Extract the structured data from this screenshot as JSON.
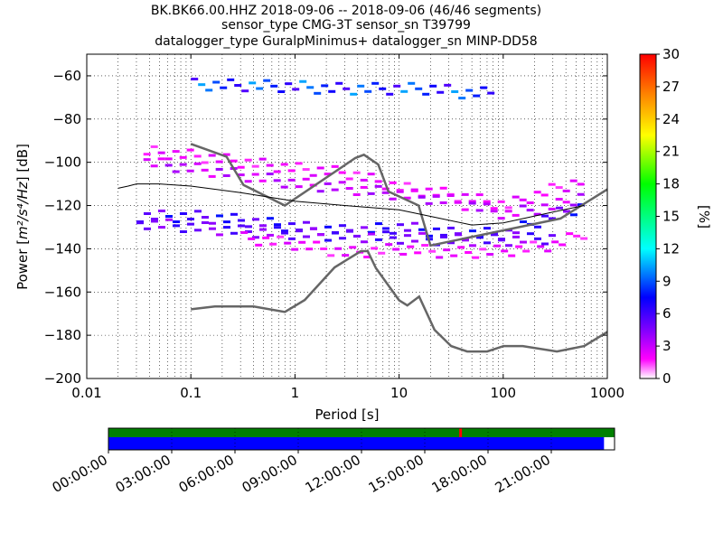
{
  "title_lines": [
    "BK.BK66.00.HHZ   2018-09-06 -- 2018-09-06  (46/46 segments)",
    "sensor_type CMG-3T sensor_sn T39799",
    "datalogger_type GuralpMinimus+ datalogger_sn MINP-DD58"
  ],
  "chart_data": [
    {
      "type": "heatmap",
      "xlabel": "Period [s]",
      "ylabel_prefix": "Power [",
      "ylabel_math": "m²/s⁴/Hz",
      "ylabel_suffix": "] [dB]",
      "x_scale": "log",
      "xlim": [
        0.01,
        1000
      ],
      "ylim": [
        -200,
        -50
      ],
      "x_ticks": [
        0.01,
        0.1,
        1,
        10,
        100,
        1000
      ],
      "x_tick_labels": [
        "0.01",
        "0.1",
        "1",
        "10",
        "100",
        "1000"
      ],
      "y_ticks": [
        -60,
        -80,
        -100,
        -120,
        -140,
        -160,
        -180,
        -200
      ],
      "y_tick_labels": [
        "−60",
        "−80",
        "−100",
        "−120",
        "−140",
        "−160",
        "−180",
        "−200"
      ],
      "grid": true,
      "colorbar": {
        "label": "[%]",
        "range": [
          0,
          30
        ],
        "ticks": [
          0,
          3,
          6,
          9,
          12,
          15,
          18,
          21,
          24,
          27,
          30
        ],
        "colors": [
          "#ffffff",
          "#ff00ff",
          "#8000ff",
          "#0000ff",
          "#00ffff",
          "#00ff00",
          "#ffff00",
          "#ff8000",
          "#ff0000"
        ]
      },
      "noise_models": [
        {
          "name": "NHNM",
          "period": [
            0.1,
            0.22,
            0.32,
            0.8,
            3.8,
            4.6,
            6.3,
            7.9,
            15.4,
            20,
            354.8,
            1000
          ],
          "power": [
            -91.5,
            -97.4,
            -110.5,
            -120,
            -98,
            -96.5,
            -101,
            -113.5,
            -120,
            -138.5,
            -126,
            -112.5
          ]
        },
        {
          "name": "NLNM",
          "period": [
            0.1,
            0.17,
            0.4,
            0.8,
            1.24,
            2.4,
            4.3,
            5.0,
            6.0,
            10.0,
            12.0,
            15.6,
            21.9,
            31.6,
            45,
            70,
            101,
            154,
            328,
            600,
            1000
          ],
          "power": [
            -168,
            -166.7,
            -166.7,
            -169.2,
            -163.7,
            -148.6,
            -141.1,
            -141.1,
            -149,
            -163.8,
            -166.2,
            -162.1,
            -177.5,
            -185,
            -187.5,
            -187.5,
            -185,
            -185,
            -187.5,
            -185,
            -178.5
          ]
        }
      ],
      "mean": {
        "period": [
          0.02,
          0.025,
          0.03,
          0.05,
          0.1,
          0.3,
          1,
          3,
          10,
          20,
          50,
          100,
          300,
          600
        ],
        "power": [
          -112,
          -111,
          -110,
          -110,
          -111,
          -114,
          -118,
          -120,
          -122,
          -125,
          -129,
          -128,
          -123,
          -120
        ]
      },
      "psd_clusters": [
        {
          "period": [
            0.1,
            1,
            2,
            10,
            20,
            40,
            80
          ],
          "power": [
            -64,
            -65,
            -66,
            -66,
            -66,
            -68,
            -68
          ],
          "percent": 8
        },
        {
          "period": [
            0.035,
            0.1,
            0.3,
            1,
            3,
            10,
            30,
            100,
            300,
            600
          ],
          "power": [
            -95,
            -97,
            -100,
            -103,
            -105,
            -112,
            -115,
            -120,
            -112,
            -108
          ],
          "percent": 2
        },
        {
          "period": [
            0.035,
            0.1,
            0.3,
            1,
            3,
            10,
            30,
            100,
            300,
            600
          ],
          "power": [
            -100,
            -103,
            -106,
            -110,
            -112,
            -115,
            -118,
            -124,
            -120,
            -115
          ],
          "percent": 3
        },
        {
          "period": [
            0.03,
            0.1,
            0.3,
            1,
            3,
            10,
            30,
            100,
            300,
            600
          ],
          "power": [
            -125,
            -125,
            -127,
            -130,
            -132,
            -130,
            -133,
            -133,
            -124,
            -120
          ],
          "percent": 6
        },
        {
          "period": [
            0.03,
            0.1,
            0.3,
            1,
            3,
            10,
            30,
            100,
            300
          ],
          "power": [
            -128,
            -130,
            -132,
            -133,
            -134,
            -135,
            -136,
            -136,
            -135
          ],
          "percent": 5
        },
        {
          "period": [
            0.3,
            1,
            3,
            10,
            30,
            100,
            300,
            600
          ],
          "power": [
            -135,
            -138,
            -142,
            -140,
            -142,
            -141,
            -138,
            -132
          ],
          "percent": 2
        }
      ]
    },
    {
      "type": "timeline",
      "x_tick_labels": [
        "00:00:00",
        "03:00:00",
        "06:00:00",
        "09:00:00",
        "12:00:00",
        "15:00:00",
        "18:00:00",
        "21:00:00"
      ],
      "bars": [
        {
          "name": "availability",
          "color": "#008000",
          "start_hour": 0,
          "end_hour": 24
        },
        {
          "name": "psd_coverage",
          "color": "#0000ff",
          "start_hour": 0,
          "end_hour": 23.5
        }
      ],
      "markers": [
        {
          "name": "gap",
          "color": "#ff0000",
          "hour": 16.7
        }
      ]
    }
  ]
}
